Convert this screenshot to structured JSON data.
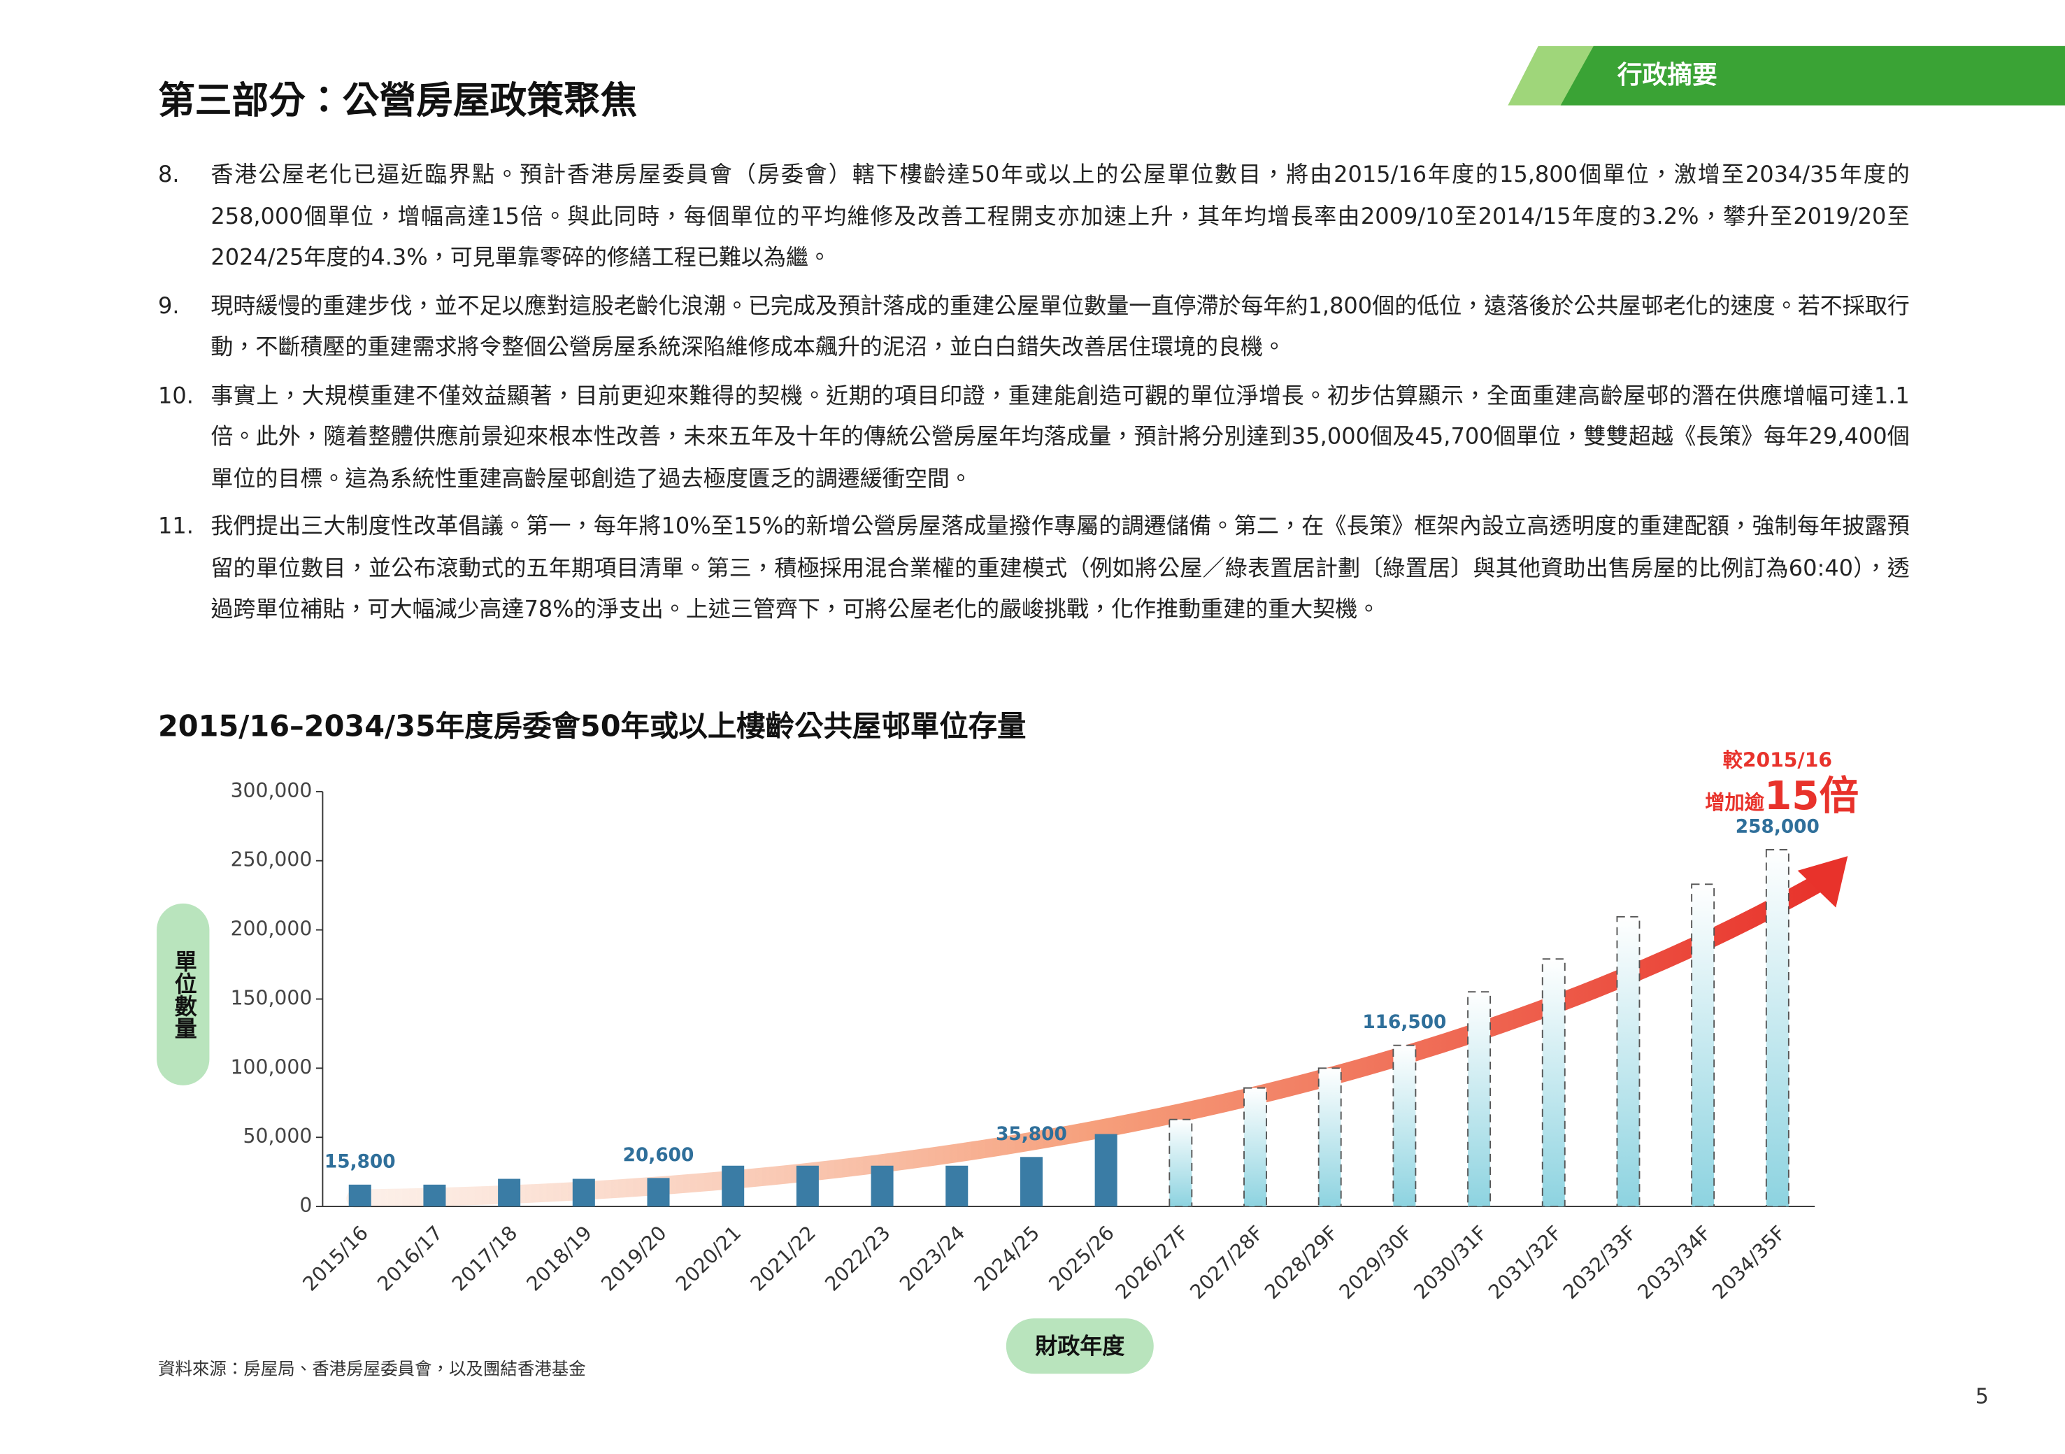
{
  "header": {
    "title": "第三部分：公營房屋政策聚焦",
    "tab": "行政摘要"
  },
  "paragraphs": [
    {
      "number": "8.",
      "text": "香港公屋老化已逼近臨界點。預計香港房屋委員會（房委會）轄下樓齡達50年或以上的公屋單位數目，將由2015/16年度的15,800個單位，激增至2034/35年度的258,000個單位，增幅高達15倍。與此同時，每個單位的平均維修及改善工程開支亦加速上升，其年均增長率由2009/10至2014/15年度的3.2%，攀升至2019/20至2024/25年度的4.3%，可見單靠零碎的修繕工程已難以為繼。"
    },
    {
      "number": "9.",
      "text": "現時緩慢的重建步伐，並不足以應對這股老齡化浪潮。已完成及預計落成的重建公屋單位數量一直停滯於每年約1,800個的低位，遠落後於公共屋邨老化的速度。若不採取行動，不斷積壓的重建需求將令整個公營房屋系統深陷維修成本飆升的泥沼，並白白錯失改善居住環境的良機。"
    },
    {
      "number": "10.",
      "text": "事實上，大規模重建不僅效益顯著，目前更迎來難得的契機。近期的項目印證，重建能創造可觀的單位淨增長。初步估算顯示，全面重建高齡屋邨的潛在供應增幅可達1.1倍。此外，隨着整體供應前景迎來根本性改善，未來五年及十年的傳統公營房屋年均落成量，預計將分別達到35,000個及45,700個單位，雙雙超越《長策》每年29,400個單位的目標。這為系統性重建高齡屋邨創造了過去極度匱乏的調遷緩衝空間。"
    },
    {
      "number": "11.",
      "text": "我們提出三大制度性改革倡議。第一，每年將10%至15%的新增公營房屋落成量撥作專屬的調遷儲備。第二，在《長策》框架內設立高透明度的重建配額，強制每年披露預留的單位數目，並公布滾動式的五年期項目清單。第三，積極採用混合業權的重建模式（例如將公屋／綠表置居計劃〔綠置居〕與其他資助出售房屋的比例訂為60:40），透過跨單位補貼，可大幅減少高達78%的淨支出。上述三管齊下，可將公屋老化的嚴峻挑戰，化作推動重建的重大契機。"
    }
  ],
  "chart_data": {
    "type": "bar",
    "title": "2015/16–2034/35年度房委會50年或以上樓齡公共屋邨單位存量",
    "y_label": "單位數量",
    "x_label": "財政年度",
    "categories": [
      "2015/16",
      "2016/17",
      "2017/18",
      "2018/19",
      "2019/20",
      "2020/21",
      "2021/22",
      "2022/23",
      "2023/24",
      "2024/25",
      "2025/26",
      "2026/27F",
      "2027/28F",
      "2028/29F",
      "2029/30F",
      "2030/31F",
      "2031/32F",
      "2032/33F",
      "2033/34F",
      "2034/35F"
    ],
    "series": [
      {
        "color": "#3a7ca5",
        "style": "solid",
        "values": [
          15800,
          15800,
          20000,
          20000,
          20600,
          29500,
          29500,
          29500,
          29500,
          35800,
          52400,
          null,
          null,
          null,
          null,
          null,
          null,
          null,
          null,
          null
        ],
        "value_labels": [
          "15,800",
          null,
          null,
          null,
          "20,600",
          null,
          null,
          null,
          null,
          "35,800",
          null,
          null,
          null,
          null,
          null,
          null,
          null,
          null,
          null,
          null
        ]
      },
      {
        "color": "#8dd3e0",
        "style": "dashed",
        "values": [
          null,
          null,
          null,
          null,
          null,
          null,
          null,
          null,
          null,
          null,
          null,
          62900,
          85700,
          100000,
          116500,
          155200,
          179000,
          209500,
          233000,
          258000
        ],
        "value_labels": [
          null,
          null,
          null,
          null,
          null,
          null,
          null,
          null,
          null,
          null,
          null,
          null,
          null,
          null,
          "116,500",
          null,
          null,
          null,
          null,
          "258,000"
        ]
      }
    ],
    "annotation": {
      "line1": "較2015/16",
      "line2": "增加逾",
      "emphasis": "15倍",
      "color": "#e8322b"
    },
    "ylim": [
      0,
      300000
    ],
    "yticks": [
      0,
      {
        "value": 50000,
        "label": "50,000"
      },
      {
        "value": 100000,
        "label": "100,000"
      },
      {
        "value": 150000,
        "label": "150,000"
      },
      {
        "value": 200000,
        "label": "200,000"
      },
      {
        "value": 250000,
        "label": "250,000"
      },
      {
        "value": 300000,
        "label": "300,000"
      }
    ]
  },
  "source": "資料來源：房屋局、香港房屋委員會，以及團結香港基金",
  "page_number": "5"
}
